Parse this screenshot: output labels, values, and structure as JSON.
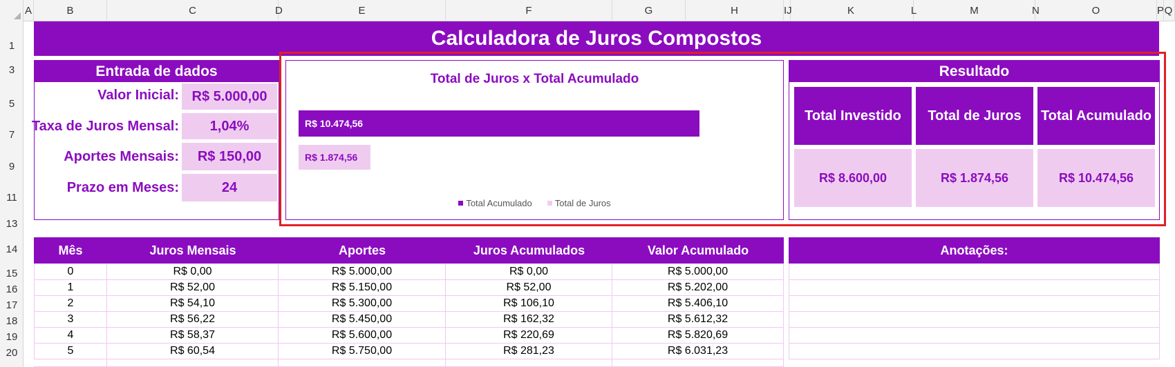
{
  "sheet": {
    "columns": [
      {
        "label": "A",
        "l": 34,
        "w": 15
      },
      {
        "label": "B",
        "l": 49,
        "w": 106
      },
      {
        "label": "C",
        "l": 155,
        "w": 248
      },
      {
        "label": "D",
        "l": 403,
        "w": 0
      },
      {
        "label": "E",
        "l": 403,
        "w": 242
      },
      {
        "label": "F",
        "l": 645,
        "w": 241
      },
      {
        "label": "G",
        "l": 886,
        "w": 106
      },
      {
        "label": "H",
        "l": 992,
        "w": 142
      },
      {
        "label": "IJ",
        "l": 1134,
        "w": 7
      },
      {
        "label": "K",
        "l": 1141,
        "w": 181
      },
      {
        "label": "L",
        "l": 1322,
        "w": 0
      },
      {
        "label": "M",
        "l": 1322,
        "w": 176
      },
      {
        "label": "N",
        "l": 1498,
        "w": 0
      },
      {
        "label": "O",
        "l": 1498,
        "w": 176
      },
      {
        "label": "P",
        "l": 1674,
        "w": 8
      },
      {
        "label": "Q",
        "l": 1682,
        "w": 18
      }
    ],
    "rows": [
      "1",
      "3",
      "5",
      "7",
      "9",
      "11",
      "13",
      "14",
      "15",
      "16",
      "17",
      "18",
      "19",
      "20"
    ]
  },
  "title": "Calculadora de Juros Compostos",
  "inputs": {
    "header": "Entrada de dados",
    "fields": [
      {
        "label": "Valor Inicial:",
        "value": "R$ 5.000,00"
      },
      {
        "label": "Taxa de Juros Mensal:",
        "value": "1,04%"
      },
      {
        "label": "Aportes Mensais:",
        "value": "R$ 150,00"
      },
      {
        "label": "Prazo em Meses:",
        "value": "24"
      }
    ]
  },
  "chart_data": {
    "type": "bar",
    "orientation": "horizontal",
    "title": "Total de Juros x Total Acumulado",
    "categories": [
      "Total Acumulado",
      "Total de Juros"
    ],
    "values": [
      10474.56,
      1874.56
    ],
    "labels": [
      "R$ 10.474,56",
      "R$ 1.874,56"
    ],
    "colors": [
      "#8b0cbf",
      "#efccef"
    ],
    "legend": [
      "Total Acumulado",
      "Total de Juros"
    ],
    "legend_position": "bottom",
    "xlim": [
      0,
      12000
    ],
    "grid": false
  },
  "result": {
    "header": "Resultado",
    "cards": [
      {
        "title": "Total Investido",
        "value": "R$ 8.600,00"
      },
      {
        "title": "Total de Juros",
        "value": "R$ 1.874,56"
      },
      {
        "title": "Total Acumulado",
        "value": "R$ 10.474,56"
      }
    ]
  },
  "table": {
    "headers": [
      "Mês",
      "Juros Mensais",
      "Aportes",
      "Juros Acumulados",
      "Valor Acumulado"
    ],
    "rows": [
      [
        "0",
        "R$ 0,00",
        "R$ 5.000,00",
        "R$ 0,00",
        "R$ 5.000,00"
      ],
      [
        "1",
        "R$ 52,00",
        "R$ 5.150,00",
        "R$ 52,00",
        "R$ 5.202,00"
      ],
      [
        "2",
        "R$ 54,10",
        "R$ 5.300,00",
        "R$ 106,10",
        "R$ 5.406,10"
      ],
      [
        "3",
        "R$ 56,22",
        "R$ 5.450,00",
        "R$ 162,32",
        "R$ 5.612,32"
      ],
      [
        "4",
        "R$ 58,37",
        "R$ 5.600,00",
        "R$ 220,69",
        "R$ 5.820,69"
      ],
      [
        "5",
        "R$ 60,54",
        "R$ 5.750,00",
        "R$ 281,23",
        "R$ 6.031,23"
      ]
    ]
  },
  "notes": {
    "header": "Anotações:"
  },
  "colors": {
    "accent": "#8b0cbf",
    "light": "#efccef",
    "highlight_border": "#e11f25"
  }
}
